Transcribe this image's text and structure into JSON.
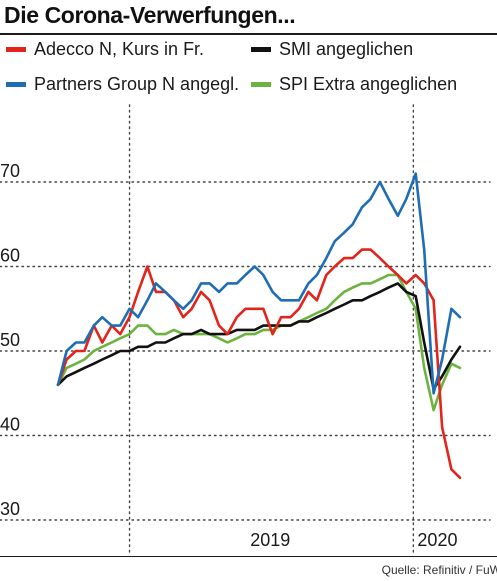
{
  "title": "Die Corona-Verwerfungen...",
  "source": "Quelle: Refinitiv / FuW",
  "chart_data": {
    "type": "line",
    "title": "Die Corona-Verwerfungen...",
    "xlabel": "",
    "ylabel": "",
    "ylim": [
      30,
      75
    ],
    "yticks": [
      30,
      40,
      50,
      60,
      70
    ],
    "xlim": [
      "2018-10-01",
      "2020-03-01"
    ],
    "xtick_labels": [
      {
        "label": "2019",
        "date": "2019-07-01"
      },
      {
        "label": "2020",
        "date": "2020-02-01"
      }
    ],
    "vertical_dotted_lines": [
      "2019-01-01",
      "2020-01-01"
    ],
    "grid": "horizontal dotted lines at y ticks",
    "legend_position": "top",
    "series": [
      {
        "name": "Adecco N, Kurs in Fr.",
        "color": "#e2241b",
        "x": [
          "2018-10-01",
          "2018-10-12",
          "2018-10-24",
          "2018-11-04",
          "2018-11-16",
          "2018-11-27",
          "2018-12-09",
          "2018-12-20",
          "2019-01-01",
          "2019-01-12",
          "2019-01-24",
          "2019-02-04",
          "2019-02-16",
          "2019-02-27",
          "2019-03-11",
          "2019-03-22",
          "2019-04-03",
          "2019-04-14",
          "2019-04-26",
          "2019-05-07",
          "2019-05-19",
          "2019-05-30",
          "2019-06-11",
          "2019-06-22",
          "2019-07-04",
          "2019-07-15",
          "2019-07-27",
          "2019-08-07",
          "2019-08-19",
          "2019-08-30",
          "2019-09-11",
          "2019-09-22",
          "2019-10-04",
          "2019-10-15",
          "2019-10-27",
          "2019-11-07",
          "2019-11-19",
          "2019-11-30",
          "2019-12-12",
          "2019-12-23",
          "2020-01-04",
          "2020-01-15",
          "2020-01-27",
          "2020-02-07",
          "2020-02-19",
          "2020-03-01"
        ],
        "values": [
          46,
          49,
          50,
          50,
          53,
          51,
          53,
          52,
          54,
          57,
          60,
          57,
          57,
          56,
          54,
          55,
          57,
          56,
          53,
          52,
          54,
          55,
          55,
          55,
          52,
          54,
          54,
          55,
          57,
          56,
          59,
          60,
          61,
          61,
          62,
          62,
          61,
          60,
          59,
          58,
          59,
          58,
          56,
          41,
          36,
          35
        ]
      },
      {
        "name": "Partners Group N angegl.",
        "color": "#1f6db3",
        "x": [
          "2018-10-01",
          "2018-10-12",
          "2018-10-24",
          "2018-11-04",
          "2018-11-16",
          "2018-11-27",
          "2018-12-09",
          "2018-12-20",
          "2019-01-01",
          "2019-01-12",
          "2019-01-24",
          "2019-02-04",
          "2019-02-16",
          "2019-02-27",
          "2019-03-11",
          "2019-03-22",
          "2019-04-03",
          "2019-04-14",
          "2019-04-26",
          "2019-05-07",
          "2019-05-19",
          "2019-05-30",
          "2019-06-11",
          "2019-06-22",
          "2019-07-04",
          "2019-07-15",
          "2019-07-27",
          "2019-08-07",
          "2019-08-19",
          "2019-08-30",
          "2019-09-11",
          "2019-09-22",
          "2019-10-04",
          "2019-10-15",
          "2019-10-27",
          "2019-11-07",
          "2019-11-19",
          "2019-11-30",
          "2019-12-12",
          "2019-12-23",
          "2020-01-04",
          "2020-01-15",
          "2020-01-27",
          "2020-02-07",
          "2020-02-19",
          "2020-03-01"
        ],
        "values": [
          46,
          50,
          51,
          51,
          53,
          54,
          53,
          53,
          55,
          54,
          56,
          58,
          57,
          56,
          55,
          56,
          58,
          58,
          57,
          58,
          58,
          59,
          60,
          59,
          57,
          56,
          56,
          56,
          58,
          59,
          61,
          63,
          64,
          65,
          67,
          68,
          70,
          68,
          66,
          68,
          71,
          62,
          45,
          49,
          55,
          54
        ]
      },
      {
        "name": "SMI angeglichen",
        "color": "#111111",
        "x": [
          "2018-10-01",
          "2018-10-12",
          "2018-10-24",
          "2018-11-04",
          "2018-11-16",
          "2018-11-27",
          "2018-12-09",
          "2018-12-20",
          "2019-01-01",
          "2019-01-12",
          "2019-01-24",
          "2019-02-04",
          "2019-02-16",
          "2019-02-27",
          "2019-03-11",
          "2019-03-22",
          "2019-04-03",
          "2019-04-14",
          "2019-04-26",
          "2019-05-07",
          "2019-05-19",
          "2019-05-30",
          "2019-06-11",
          "2019-06-22",
          "2019-07-04",
          "2019-07-15",
          "2019-07-27",
          "2019-08-07",
          "2019-08-19",
          "2019-08-30",
          "2019-09-11",
          "2019-09-22",
          "2019-10-04",
          "2019-10-15",
          "2019-10-27",
          "2019-11-07",
          "2019-11-19",
          "2019-11-30",
          "2019-12-12",
          "2019-12-23",
          "2020-01-04",
          "2020-01-15",
          "2020-01-27",
          "2020-02-07",
          "2020-02-19",
          "2020-03-01"
        ],
        "values": [
          46,
          47,
          47.5,
          48,
          48.5,
          49,
          49.5,
          50,
          50,
          50.5,
          50.5,
          51,
          51,
          51.5,
          52,
          52,
          52.5,
          52,
          52,
          52,
          52.5,
          52.5,
          52.5,
          53,
          53,
          53,
          53,
          53.5,
          53.5,
          54,
          54.5,
          55,
          55.5,
          56,
          56,
          56.5,
          57,
          57.5,
          58,
          57,
          56.5,
          51,
          45.5,
          47,
          49,
          50.5
        ]
      },
      {
        "name": "SPI Extra angeglichen",
        "color": "#6cb33f",
        "x": [
          "2018-10-01",
          "2018-10-12",
          "2018-10-24",
          "2018-11-04",
          "2018-11-16",
          "2018-11-27",
          "2018-12-09",
          "2018-12-20",
          "2019-01-01",
          "2019-01-12",
          "2019-01-24",
          "2019-02-04",
          "2019-02-16",
          "2019-02-27",
          "2019-03-11",
          "2019-03-22",
          "2019-04-03",
          "2019-04-14",
          "2019-04-26",
          "2019-05-07",
          "2019-05-19",
          "2019-05-30",
          "2019-06-11",
          "2019-06-22",
          "2019-07-04",
          "2019-07-15",
          "2019-07-27",
          "2019-08-07",
          "2019-08-19",
          "2019-08-30",
          "2019-09-11",
          "2019-09-22",
          "2019-10-04",
          "2019-10-15",
          "2019-10-27",
          "2019-11-07",
          "2019-11-19",
          "2019-11-30",
          "2019-12-12",
          "2019-12-23",
          "2020-01-04",
          "2020-01-15",
          "2020-01-27",
          "2020-02-07",
          "2020-02-19",
          "2020-03-01"
        ],
        "values": [
          46,
          48,
          48.5,
          49,
          50,
          50.5,
          51,
          51.5,
          52,
          53,
          53,
          52,
          52,
          52.5,
          52,
          52,
          52,
          52,
          51.5,
          51,
          51.5,
          52,
          52,
          52.5,
          52.5,
          53,
          53,
          53.5,
          54,
          54.5,
          55,
          56,
          57,
          57.5,
          58,
          58,
          58.5,
          59,
          59,
          57,
          55,
          48,
          43,
          46,
          48.5,
          48
        ]
      }
    ]
  }
}
